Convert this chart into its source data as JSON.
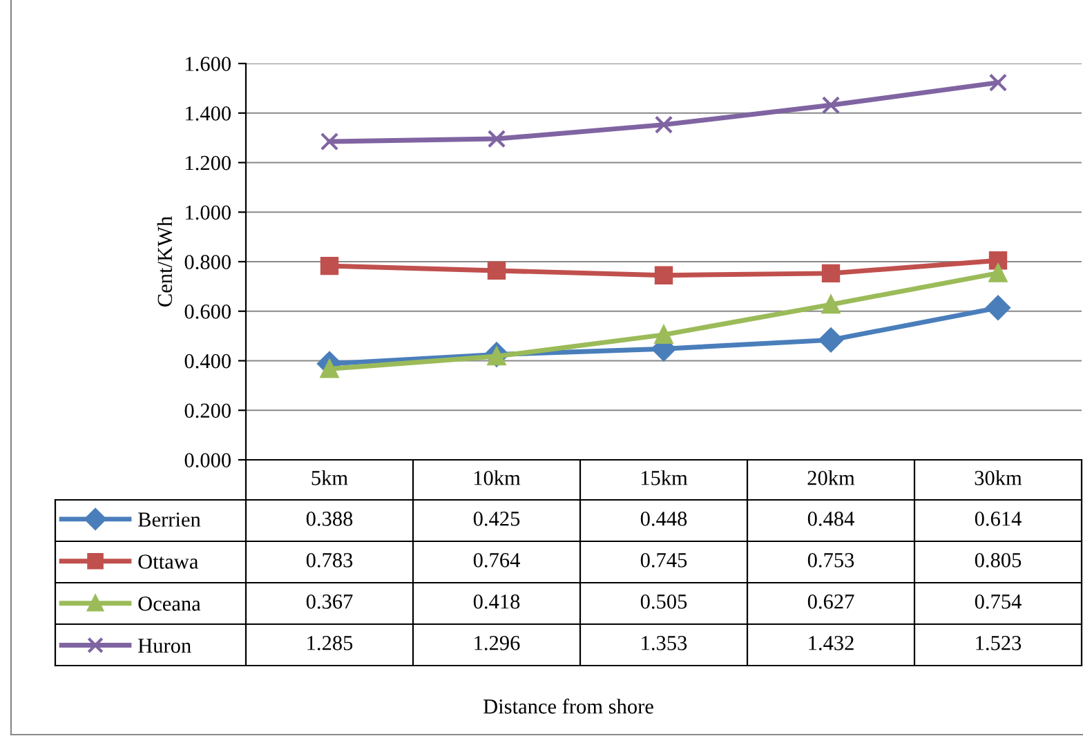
{
  "chart_data": {
    "type": "line",
    "annotations": [
      "Distance from shore"
    ],
    "ylabel": "Cent/KWh",
    "categories": [
      "5km",
      "10km",
      "15km",
      "20km",
      "30km"
    ],
    "series": [
      {
        "name": "Berrien",
        "color": "#4a7ebb",
        "marker": "diamond",
        "values": [
          0.388,
          0.425,
          0.448,
          0.484,
          0.614
        ]
      },
      {
        "name": "Ottawa",
        "color": "#c0504d",
        "marker": "square",
        "values": [
          0.783,
          0.764,
          0.745,
          0.753,
          0.805
        ]
      },
      {
        "name": "Oceana",
        "color": "#9bbb59",
        "marker": "triangle",
        "values": [
          0.367,
          0.418,
          0.505,
          0.627,
          0.754
        ]
      },
      {
        "name": "Huron",
        "color": "#8064a2",
        "marker": "cross",
        "values": [
          1.285,
          1.296,
          1.353,
          1.432,
          1.523
        ]
      }
    ],
    "ylim": [
      0,
      1.6
    ],
    "yticks": [
      {
        "value": 0,
        "label": "0.000"
      },
      {
        "value": 0.2,
        "label": "0.200"
      },
      {
        "value": 0.4,
        "label": "0.400"
      },
      {
        "value": 0.6,
        "label": "0.600"
      },
      {
        "value": 0.8,
        "label": "0.800"
      },
      {
        "value": 1.0,
        "label": "1.000"
      },
      {
        "value": 1.2,
        "label": "1.200"
      },
      {
        "value": 1.4,
        "label": "1.400"
      },
      {
        "value": 1.6,
        "label": "1.600"
      }
    ],
    "grid": "y",
    "data_labels": true,
    "legend": "bottom left"
  }
}
